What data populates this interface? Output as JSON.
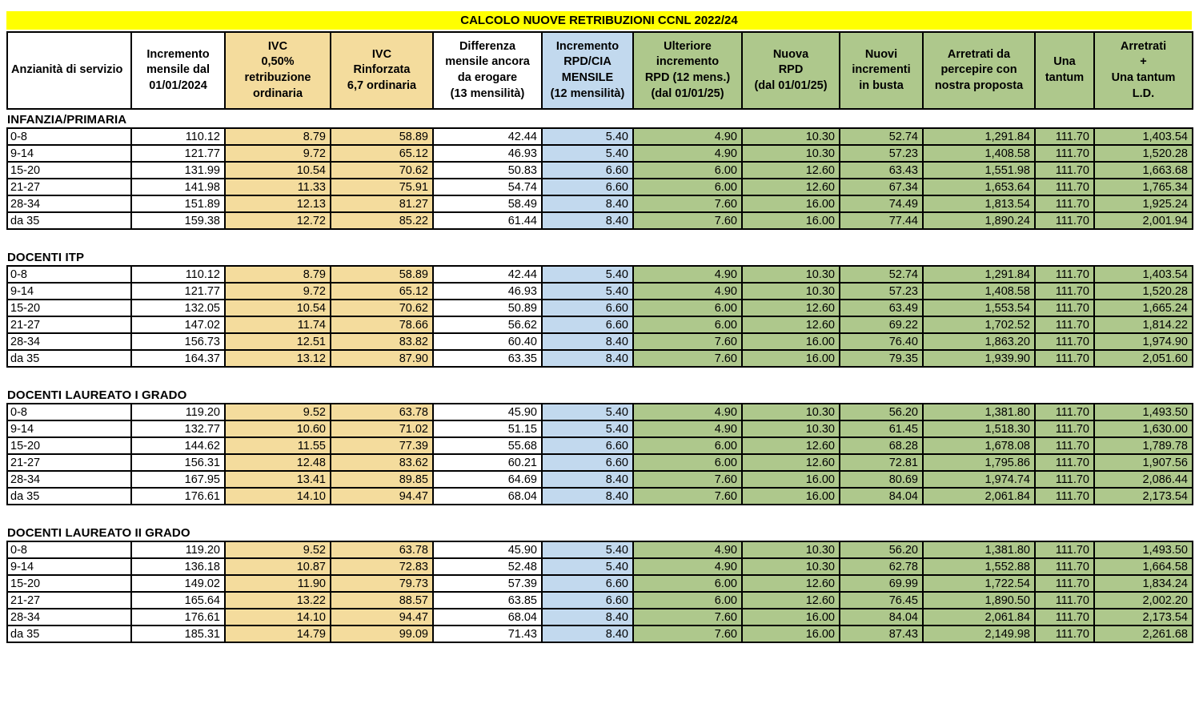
{
  "title": "CALCOLO NUOVE RETRIBUZIONI CCNL 2022/24",
  "colors": {
    "title_bg": "#FFFF00",
    "ivc_tan": "#F4DC9D",
    "rpd_blue": "#C2D9EE",
    "table_green": "#AEC88C"
  },
  "columns": [
    {
      "label": "Anzianità di servizio"
    },
    {
      "label": "Incremento\nmensile dal\n01/01/2024"
    },
    {
      "label": "IVC\n0,50%\nretribuzione\nordinaria"
    },
    {
      "label": "IVC\nRinforzata\n6,7 ordinaria"
    },
    {
      "label": "Differenza\nmensile ancora\nda erogare\n(13 mensilità)"
    },
    {
      "label": "Incremento\nRPD/CIA\nMENSILE\n(12 mensilità)"
    },
    {
      "label": "Ulteriore\nincremento\nRPD (12 mens.)\n(dal 01/01/25)"
    },
    {
      "label": "Nuova\nRPD\n(dal 01/01/25)"
    },
    {
      "label": "Nuovi\nincrementi\nin busta"
    },
    {
      "label": "Arretrati da\npercepire con\nnostra proposta"
    },
    {
      "label": "Una\ntantum"
    },
    {
      "label": "Arretrati\n+\nUna tantum\nL.D."
    }
  ],
  "sections": [
    {
      "name": "INFANZIA/PRIMARIA",
      "rows": [
        {
          "cells": [
            "0-8",
            "110.12",
            "8.79",
            "58.89",
            "42.44",
            "5.40",
            "4.90",
            "10.30",
            "52.74",
            "1,291.84",
            "111.70",
            "1,403.54"
          ]
        },
        {
          "cells": [
            "9-14",
            "121.77",
            "9.72",
            "65.12",
            "46.93",
            "5.40",
            "4.90",
            "10.30",
            "57.23",
            "1,408.58",
            "111.70",
            "1,520.28"
          ]
        },
        {
          "cells": [
            "15-20",
            "131.99",
            "10.54",
            "70.62",
            "50.83",
            "6.60",
            "6.00",
            "12.60",
            "63.43",
            "1,551.98",
            "111.70",
            "1,663.68"
          ]
        },
        {
          "cells": [
            "21-27",
            "141.98",
            "11.33",
            "75.91",
            "54.74",
            "6.60",
            "6.00",
            "12.60",
            "67.34",
            "1,653.64",
            "111.70",
            "1,765.34"
          ]
        },
        {
          "cells": [
            "28-34",
            "151.89",
            "12.13",
            "81.27",
            "58.49",
            "8.40",
            "7.60",
            "16.00",
            "74.49",
            "1,813.54",
            "111.70",
            "1,925.24"
          ]
        },
        {
          "cells": [
            "da 35",
            "159.38",
            "12.72",
            "85.22",
            "61.44",
            "8.40",
            "7.60",
            "16.00",
            "77.44",
            "1,890.24",
            "111.70",
            "2,001.94"
          ]
        }
      ]
    },
    {
      "name": "DOCENTI ITP",
      "rows": [
        {
          "cells": [
            "0-8",
            "110.12",
            "8.79",
            "58.89",
            "42.44",
            "5.40",
            "4.90",
            "10.30",
            "52.74",
            "1,291.84",
            "111.70",
            "1,403.54"
          ]
        },
        {
          "cells": [
            "9-14",
            "121.77",
            "9.72",
            "65.12",
            "46.93",
            "5.40",
            "4.90",
            "10.30",
            "57.23",
            "1,408.58",
            "111.70",
            "1,520.28"
          ]
        },
        {
          "cells": [
            "15-20",
            "132.05",
            "10.54",
            "70.62",
            "50.89",
            "6.60",
            "6.00",
            "12.60",
            "63.49",
            "1,553.54",
            "111.70",
            "1,665.24"
          ]
        },
        {
          "cells": [
            "21-27",
            "147.02",
            "11.74",
            "78.66",
            "56.62",
            "6.60",
            "6.00",
            "12.60",
            "69.22",
            "1,702.52",
            "111.70",
            "1,814.22"
          ]
        },
        {
          "cells": [
            "28-34",
            "156.73",
            "12.51",
            "83.82",
            "60.40",
            "8.40",
            "7.60",
            "16.00",
            "76.40",
            "1,863.20",
            "111.70",
            "1,974.90"
          ]
        },
        {
          "cells": [
            "da 35",
            "164.37",
            "13.12",
            "87.90",
            "63.35",
            "8.40",
            "7.60",
            "16.00",
            "79.35",
            "1,939.90",
            "111.70",
            "2,051.60"
          ]
        }
      ]
    },
    {
      "name": "DOCENTI LAUREATO I GRADO",
      "rows": [
        {
          "cells": [
            "0-8",
            "119.20",
            "9.52",
            "63.78",
            "45.90",
            "5.40",
            "4.90",
            "10.30",
            "56.20",
            "1,381.80",
            "111.70",
            "1,493.50"
          ]
        },
        {
          "cells": [
            "9-14",
            "132.77",
            "10.60",
            "71.02",
            "51.15",
            "5.40",
            "4.90",
            "10.30",
            "61.45",
            "1,518.30",
            "111.70",
            "1,630.00"
          ]
        },
        {
          "cells": [
            "15-20",
            "144.62",
            "11.55",
            "77.39",
            "55.68",
            "6.60",
            "6.00",
            "12.60",
            "68.28",
            "1,678.08",
            "111.70",
            "1,789.78"
          ]
        },
        {
          "cells": [
            "21-27",
            "156.31",
            "12.48",
            "83.62",
            "60.21",
            "6.60",
            "6.00",
            "12.60",
            "72.81",
            "1,795.86",
            "111.70",
            "1,907.56"
          ]
        },
        {
          "cells": [
            "28-34",
            "167.95",
            "13.41",
            "89.85",
            "64.69",
            "8.40",
            "7.60",
            "16.00",
            "80.69",
            "1,974.74",
            "111.70",
            "2,086.44"
          ]
        },
        {
          "cells": [
            "da 35",
            "176.61",
            "14.10",
            "94.47",
            "68.04",
            "8.40",
            "7.60",
            "16.00",
            "84.04",
            "2,061.84",
            "111.70",
            "2,173.54"
          ]
        }
      ]
    },
    {
      "name": "DOCENTI LAUREATO II GRADO",
      "rows": [
        {
          "cells": [
            "0-8",
            "119.20",
            "9.52",
            "63.78",
            "45.90",
            "5.40",
            "4.90",
            "10.30",
            "56.20",
            "1,381.80",
            "111.70",
            "1,493.50"
          ]
        },
        {
          "cells": [
            "9-14",
            "136.18",
            "10.87",
            "72.83",
            "52.48",
            "5.40",
            "4.90",
            "10.30",
            "62.78",
            "1,552.88",
            "111.70",
            "1,664.58"
          ]
        },
        {
          "cells": [
            "15-20",
            "149.02",
            "11.90",
            "79.73",
            "57.39",
            "6.60",
            "6.00",
            "12.60",
            "69.99",
            "1,722.54",
            "111.70",
            "1,834.24"
          ]
        },
        {
          "cells": [
            "21-27",
            "165.64",
            "13.22",
            "88.57",
            "63.85",
            "6.60",
            "6.00",
            "12.60",
            "76.45",
            "1,890.50",
            "111.70",
            "2,002.20"
          ]
        },
        {
          "cells": [
            "28-34",
            "176.61",
            "14.10",
            "94.47",
            "68.04",
            "8.40",
            "7.60",
            "16.00",
            "84.04",
            "2,061.84",
            "111.70",
            "2,173.54"
          ]
        },
        {
          "cells": [
            "da 35",
            "185.31",
            "14.79",
            "99.09",
            "71.43",
            "8.40",
            "7.60",
            "16.00",
            "87.43",
            "2,149.98",
            "111.70",
            "2,261.68"
          ]
        }
      ]
    }
  ]
}
